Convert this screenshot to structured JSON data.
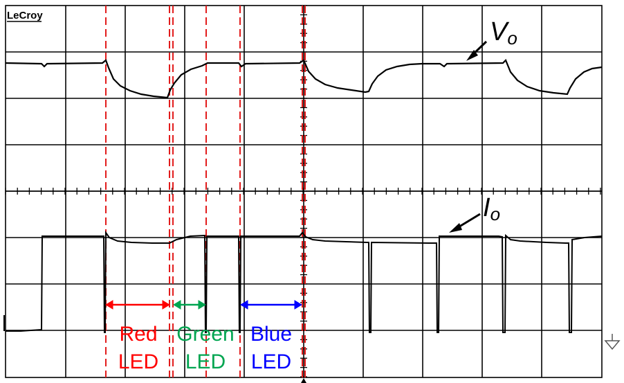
{
  "brand": "LeCroy",
  "traces": {
    "voltage": {
      "label_main": "V",
      "label_sub": "o"
    },
    "current": {
      "label_main": "I",
      "label_sub": "o"
    }
  },
  "intervals": [
    {
      "line1": "Red",
      "line2": "LED",
      "color": "#ff0000"
    },
    {
      "line1": "Green",
      "line2": "LED",
      "color": "#00a550"
    },
    {
      "line1": "Blue",
      "line2": "LED",
      "color": "#0000ff"
    }
  ],
  "colors": {
    "marker": "#e21b1b",
    "grid": "#000000",
    "trace": "#000000"
  }
}
